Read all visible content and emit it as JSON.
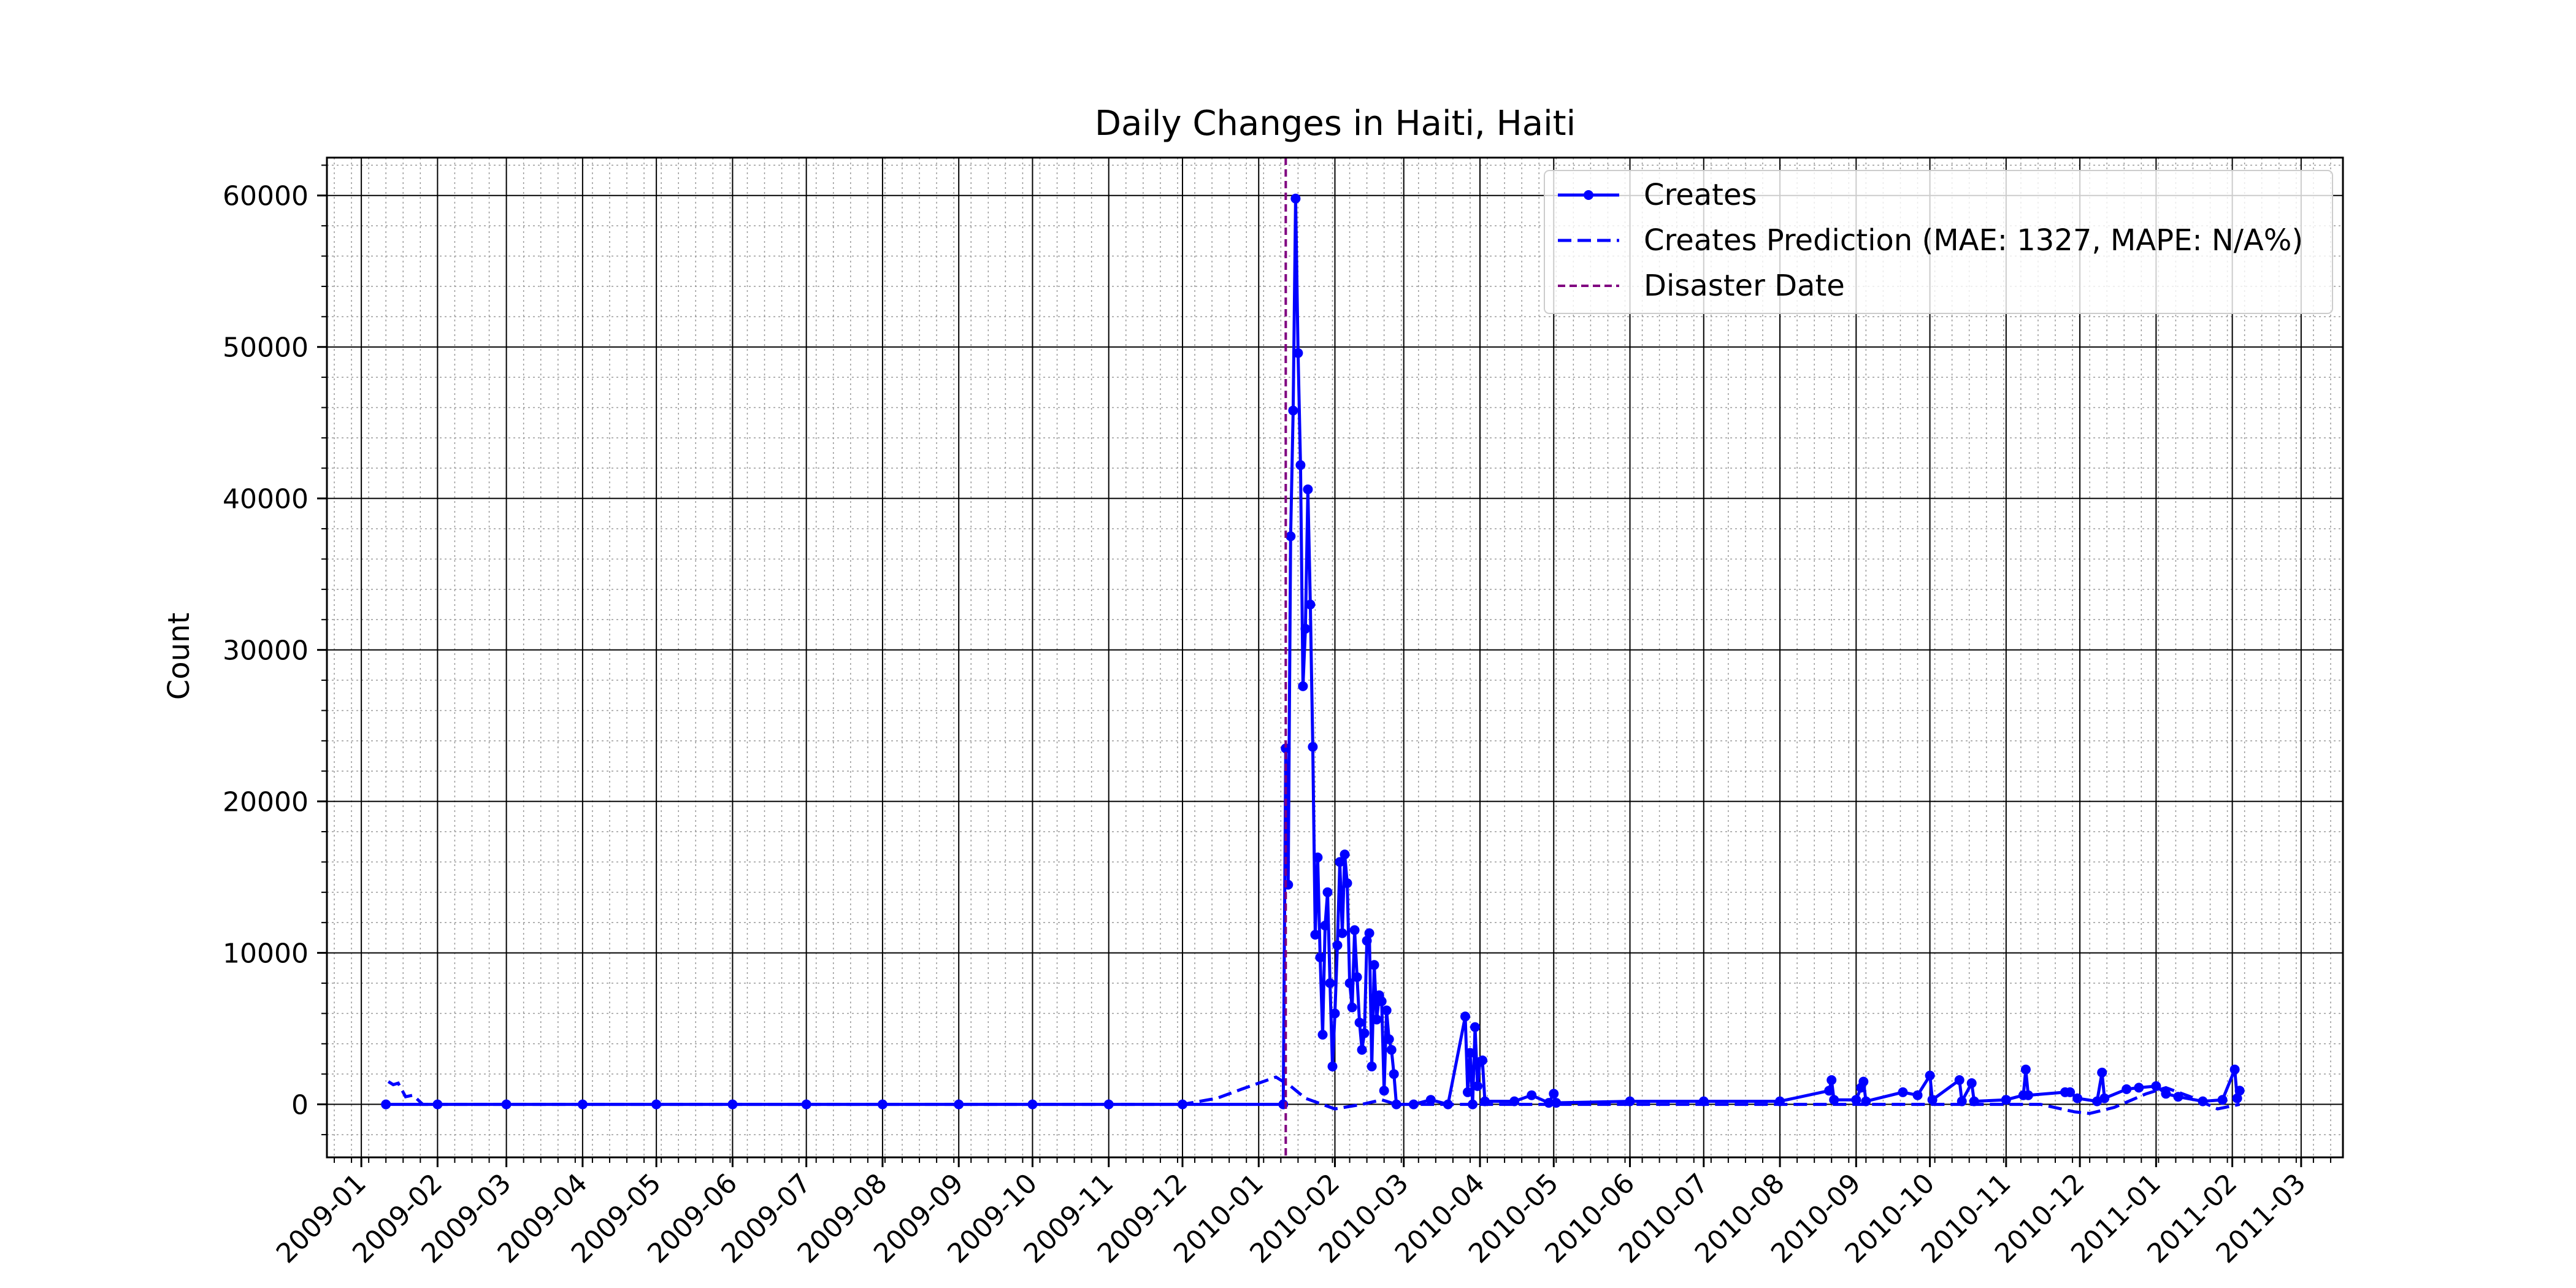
{
  "chart_data": {
    "type": "line",
    "title": "Daily Changes in Haiti, Haiti",
    "xlabel": "",
    "ylabel": "Count",
    "xlim": [
      "2008-12-18",
      "2011-03-18"
    ],
    "ylim": [
      -3500,
      62500
    ],
    "yticks": [
      0,
      10000,
      20000,
      30000,
      40000,
      50000,
      60000
    ],
    "xticks": [
      "2009-01",
      "2009-02",
      "2009-03",
      "2009-04",
      "2009-05",
      "2009-06",
      "2009-07",
      "2009-08",
      "2009-09",
      "2009-10",
      "2009-11",
      "2009-12",
      "2010-01",
      "2010-02",
      "2010-03",
      "2010-04",
      "2010-05",
      "2010-06",
      "2010-07",
      "2010-08",
      "2010-09",
      "2010-10",
      "2010-11",
      "2010-12",
      "2011-01",
      "2011-02",
      "2011-03"
    ],
    "grid": "major-solid-and-minor-dotted",
    "legend_position": "top-right",
    "disaster_date": "2010-01-12",
    "disaster_color": "#800080",
    "series": [
      {
        "name": "Creates",
        "style": "solid-with-markers",
        "color": "#0000ff",
        "points": [
          [
            "2009-01-11",
            0
          ],
          [
            "2009-02-01",
            0
          ],
          [
            "2009-03-01",
            0
          ],
          [
            "2009-04-01",
            0
          ],
          [
            "2009-05-01",
            0
          ],
          [
            "2009-06-01",
            0
          ],
          [
            "2009-07-01",
            0
          ],
          [
            "2009-08-01",
            0
          ],
          [
            "2009-09-01",
            0
          ],
          [
            "2009-10-01",
            0
          ],
          [
            "2009-11-01",
            0
          ],
          [
            "2009-12-01",
            0
          ],
          [
            "2010-01-11",
            0
          ],
          [
            "2010-01-12",
            23500
          ],
          [
            "2010-01-13",
            14500
          ],
          [
            "2010-01-14",
            37500
          ],
          [
            "2010-01-15",
            45800
          ],
          [
            "2010-01-16",
            59800
          ],
          [
            "2010-01-17",
            49600
          ],
          [
            "2010-01-18",
            42200
          ],
          [
            "2010-01-19",
            27600
          ],
          [
            "2010-01-20",
            31400
          ],
          [
            "2010-01-21",
            40600
          ],
          [
            "2010-01-22",
            33000
          ],
          [
            "2010-01-23",
            23600
          ],
          [
            "2010-01-24",
            11200
          ],
          [
            "2010-01-25",
            16300
          ],
          [
            "2010-01-26",
            9700
          ],
          [
            "2010-01-27",
            4600
          ],
          [
            "2010-01-28",
            11800
          ],
          [
            "2010-01-29",
            14000
          ],
          [
            "2010-01-30",
            8000
          ],
          [
            "2010-01-31",
            2500
          ],
          [
            "2010-02-01",
            6000
          ],
          [
            "2010-02-02",
            10500
          ],
          [
            "2010-02-03",
            16000
          ],
          [
            "2010-02-04",
            11300
          ],
          [
            "2010-02-05",
            16500
          ],
          [
            "2010-02-06",
            14600
          ],
          [
            "2010-02-07",
            8000
          ],
          [
            "2010-02-08",
            6400
          ],
          [
            "2010-02-09",
            11500
          ],
          [
            "2010-02-10",
            8400
          ],
          [
            "2010-02-11",
            5400
          ],
          [
            "2010-02-12",
            3600
          ],
          [
            "2010-02-13",
            4700
          ],
          [
            "2010-02-14",
            10800
          ],
          [
            "2010-02-15",
            11300
          ],
          [
            "2010-02-16",
            2500
          ],
          [
            "2010-02-17",
            9200
          ],
          [
            "2010-02-18",
            5600
          ],
          [
            "2010-02-19",
            7200
          ],
          [
            "2010-02-20",
            6800
          ],
          [
            "2010-02-21",
            900
          ],
          [
            "2010-02-22",
            6200
          ],
          [
            "2010-02-23",
            4300
          ],
          [
            "2010-02-24",
            3600
          ],
          [
            "2010-02-25",
            2000
          ],
          [
            "2010-02-26",
            0
          ],
          [
            "2010-03-05",
            0
          ],
          [
            "2010-03-12",
            300
          ],
          [
            "2010-03-19",
            0
          ],
          [
            "2010-03-26",
            5800
          ],
          [
            "2010-03-27",
            800
          ],
          [
            "2010-03-28",
            3400
          ],
          [
            "2010-03-29",
            0
          ],
          [
            "2010-03-30",
            5100
          ],
          [
            "2010-03-31",
            1200
          ],
          [
            "2010-04-01",
            2800
          ],
          [
            "2010-04-02",
            2900
          ],
          [
            "2010-04-03",
            200
          ],
          [
            "2010-04-15",
            200
          ],
          [
            "2010-04-22",
            600
          ],
          [
            "2010-04-29",
            100
          ],
          [
            "2010-05-01",
            700
          ],
          [
            "2010-05-02",
            100
          ],
          [
            "2010-06-01",
            200
          ],
          [
            "2010-07-01",
            200
          ],
          [
            "2010-08-01",
            200
          ],
          [
            "2010-08-21",
            900
          ],
          [
            "2010-08-22",
            1600
          ],
          [
            "2010-08-23",
            300
          ],
          [
            "2010-09-01",
            300
          ],
          [
            "2010-09-03",
            1100
          ],
          [
            "2010-09-04",
            1500
          ],
          [
            "2010-09-05",
            200
          ],
          [
            "2010-09-20",
            800
          ],
          [
            "2010-09-26",
            600
          ],
          [
            "2010-10-01",
            1900
          ],
          [
            "2010-10-02",
            300
          ],
          [
            "2010-10-13",
            1600
          ],
          [
            "2010-10-14",
            200
          ],
          [
            "2010-10-18",
            1400
          ],
          [
            "2010-10-19",
            200
          ],
          [
            "2010-11-01",
            300
          ],
          [
            "2010-11-08",
            600
          ],
          [
            "2010-11-09",
            2300
          ],
          [
            "2010-11-10",
            600
          ],
          [
            "2010-11-25",
            800
          ],
          [
            "2010-11-27",
            800
          ],
          [
            "2010-11-30",
            400
          ],
          [
            "2010-12-08",
            200
          ],
          [
            "2010-12-10",
            2100
          ],
          [
            "2010-12-11",
            400
          ],
          [
            "2010-12-20",
            1000
          ],
          [
            "2010-12-25",
            1100
          ],
          [
            "2011-01-01",
            1200
          ],
          [
            "2011-01-05",
            700
          ],
          [
            "2011-01-10",
            500
          ],
          [
            "2011-01-20",
            200
          ],
          [
            "2011-01-28",
            300
          ],
          [
            "2011-02-02",
            2300
          ],
          [
            "2011-02-03",
            400
          ],
          [
            "2011-02-04",
            900
          ]
        ]
      },
      {
        "name": "Creates Prediction (MAE: 1327, MAPE: N/A%)",
        "style": "dashed",
        "color": "#0000ff",
        "points": [
          [
            "2009-01-12",
            1500
          ],
          [
            "2009-01-14",
            1300
          ],
          [
            "2009-01-16",
            1400
          ],
          [
            "2009-01-19",
            500
          ],
          [
            "2009-01-22",
            600
          ],
          [
            "2009-01-26",
            0
          ],
          [
            "2009-12-01",
            0
          ],
          [
            "2009-12-15",
            400
          ],
          [
            "2009-12-25",
            1000
          ],
          [
            "2010-01-01",
            1400
          ],
          [
            "2010-01-08",
            1800
          ],
          [
            "2010-01-14",
            1200
          ],
          [
            "2010-01-20",
            400
          ],
          [
            "2010-02-01",
            -300
          ],
          [
            "2010-02-12",
            0
          ],
          [
            "2010-02-20",
            300
          ],
          [
            "2010-02-26",
            0
          ],
          [
            "2010-10-01",
            0
          ],
          [
            "2010-11-15",
            0
          ],
          [
            "2010-11-29",
            -500
          ],
          [
            "2010-12-05",
            -600
          ],
          [
            "2010-12-15",
            -200
          ],
          [
            "2010-12-28",
            700
          ],
          [
            "2011-01-05",
            1100
          ],
          [
            "2011-01-15",
            500
          ],
          [
            "2011-01-26",
            -300
          ],
          [
            "2011-02-04",
            0
          ]
        ]
      }
    ],
    "legend": {
      "creates": "Creates",
      "prediction": "Creates Prediction (MAE: 1327, MAPE: N/A%)",
      "disaster": "Disaster Date"
    }
  }
}
